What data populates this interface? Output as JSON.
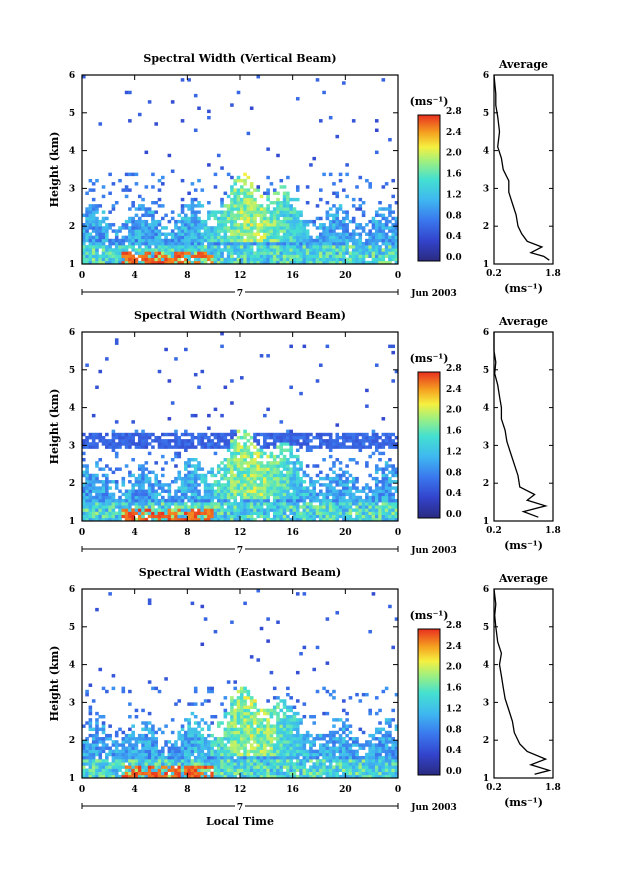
{
  "chart_data": [
    {
      "type": "heatmap",
      "title": "Spectral Width (Vertical Beam)",
      "ylabel": "Height (km)",
      "xlim": [
        0,
        24
      ],
      "ylim": [
        1,
        6
      ],
      "x_ticks": [
        "0",
        "4",
        "8",
        "12",
        "16",
        "20",
        "0"
      ],
      "y_ticks": [
        "1",
        "2",
        "3",
        "4",
        "5",
        "6"
      ],
      "day_label": "7",
      "date_label": "Jun 2003",
      "colorbar": {
        "unit": "(ms⁻¹)",
        "range": [
          0,
          2.8
        ],
        "ticks": [
          "0.0",
          "0.4",
          "0.8",
          "1.2",
          "1.6",
          "2.0",
          "2.4",
          "2.8"
        ]
      },
      "average_panel": {
        "title": "Average",
        "xlabel": "(ms⁻¹)",
        "x_ticks": [
          "0.2",
          "1.8"
        ],
        "y_ticks": [
          "1",
          "2",
          "3",
          "4",
          "5",
          "6"
        ],
        "xlim": [
          0.2,
          1.8
        ],
        "profile": [
          [
            1.1,
            1.7
          ],
          [
            1.2,
            1.55
          ],
          [
            1.3,
            1.2
          ],
          [
            1.45,
            1.5
          ],
          [
            1.6,
            1.1
          ],
          [
            1.8,
            0.95
          ],
          [
            2.0,
            0.85
          ],
          [
            2.3,
            0.8
          ],
          [
            2.6,
            0.7
          ],
          [
            2.9,
            0.6
          ],
          [
            3.2,
            0.6
          ],
          [
            3.5,
            0.45
          ],
          [
            3.8,
            0.4
          ],
          [
            4.1,
            0.3
          ],
          [
            4.5,
            0.35
          ],
          [
            4.9,
            0.3
          ],
          [
            5.2,
            0.25
          ],
          [
            5.5,
            0.25
          ],
          [
            5.8,
            0.22
          ],
          [
            6.0,
            0.2
          ]
        ]
      }
    },
    {
      "type": "heatmap",
      "title": "Spectral Width (Northward Beam)",
      "ylabel": "Height (km)",
      "xlim": [
        0,
        24
      ],
      "ylim": [
        1,
        6
      ],
      "x_ticks": [
        "0",
        "4",
        "8",
        "12",
        "16",
        "20",
        "0"
      ],
      "y_ticks": [
        "1",
        "2",
        "3",
        "4",
        "5",
        "6"
      ],
      "day_label": "7",
      "date_label": "Jun 2003",
      "colorbar": {
        "unit": "(ms⁻¹)",
        "range": [
          0,
          2.8
        ],
        "ticks": [
          "0.0",
          "0.4",
          "0.8",
          "1.2",
          "1.6",
          "2.0",
          "2.4",
          "2.8"
        ]
      },
      "average_panel": {
        "title": "Average",
        "xlabel": "(ms⁻¹)",
        "x_ticks": [
          "0.2",
          "1.8"
        ],
        "y_ticks": [
          "1",
          "2",
          "3",
          "4",
          "5",
          "6"
        ],
        "xlim": [
          0.2,
          1.8
        ],
        "profile": [
          [
            1.1,
            1.4
          ],
          [
            1.25,
            1.0
          ],
          [
            1.4,
            1.6
          ],
          [
            1.55,
            1.1
          ],
          [
            1.7,
            1.3
          ],
          [
            1.9,
            0.9
          ],
          [
            2.2,
            0.85
          ],
          [
            2.5,
            0.75
          ],
          [
            2.8,
            0.65
          ],
          [
            3.1,
            0.55
          ],
          [
            3.4,
            0.5
          ],
          [
            3.7,
            0.4
          ],
          [
            4.0,
            0.4
          ],
          [
            4.3,
            0.35
          ],
          [
            4.6,
            0.3
          ],
          [
            4.9,
            0.22
          ],
          [
            5.2,
            0.25
          ],
          [
            5.5,
            0.2
          ],
          [
            6.0,
            0.2
          ]
        ]
      }
    },
    {
      "type": "heatmap",
      "title": "Spectral Width (Eastward Beam)",
      "ylabel": "Height (km)",
      "xlabel": "Local Time",
      "xlim": [
        0,
        24
      ],
      "ylim": [
        1,
        6
      ],
      "x_ticks": [
        "0",
        "4",
        "8",
        "12",
        "16",
        "20",
        "0"
      ],
      "y_ticks": [
        "1",
        "2",
        "3",
        "4",
        "5",
        "6"
      ],
      "day_label": "7",
      "date_label": "Jun 2003",
      "colorbar": {
        "unit": "(ms⁻¹)",
        "range": [
          0,
          2.8
        ],
        "ticks": [
          "0.0",
          "0.4",
          "0.8",
          "1.2",
          "1.6",
          "2.0",
          "2.4",
          "2.8"
        ]
      },
      "average_panel": {
        "title": "Average",
        "xlabel": "(ms⁻¹)",
        "x_ticks": [
          "0.2",
          "1.8"
        ],
        "y_ticks": [
          "1",
          "2",
          "3",
          "4",
          "5",
          "6"
        ],
        "xlim": [
          0.2,
          1.8
        ],
        "profile": [
          [
            1.1,
            1.3
          ],
          [
            1.2,
            1.7
          ],
          [
            1.35,
            1.2
          ],
          [
            1.5,
            1.6
          ],
          [
            1.7,
            1.1
          ],
          [
            1.9,
            0.9
          ],
          [
            2.2,
            0.75
          ],
          [
            2.5,
            0.7
          ],
          [
            2.8,
            0.6
          ],
          [
            3.1,
            0.5
          ],
          [
            3.4,
            0.45
          ],
          [
            3.7,
            0.4
          ],
          [
            4.0,
            0.35
          ],
          [
            4.3,
            0.4
          ],
          [
            4.6,
            0.3
          ],
          [
            5.0,
            0.25
          ],
          [
            5.3,
            0.22
          ],
          [
            5.6,
            0.25
          ],
          [
            6.0,
            0.2
          ]
        ]
      }
    }
  ]
}
